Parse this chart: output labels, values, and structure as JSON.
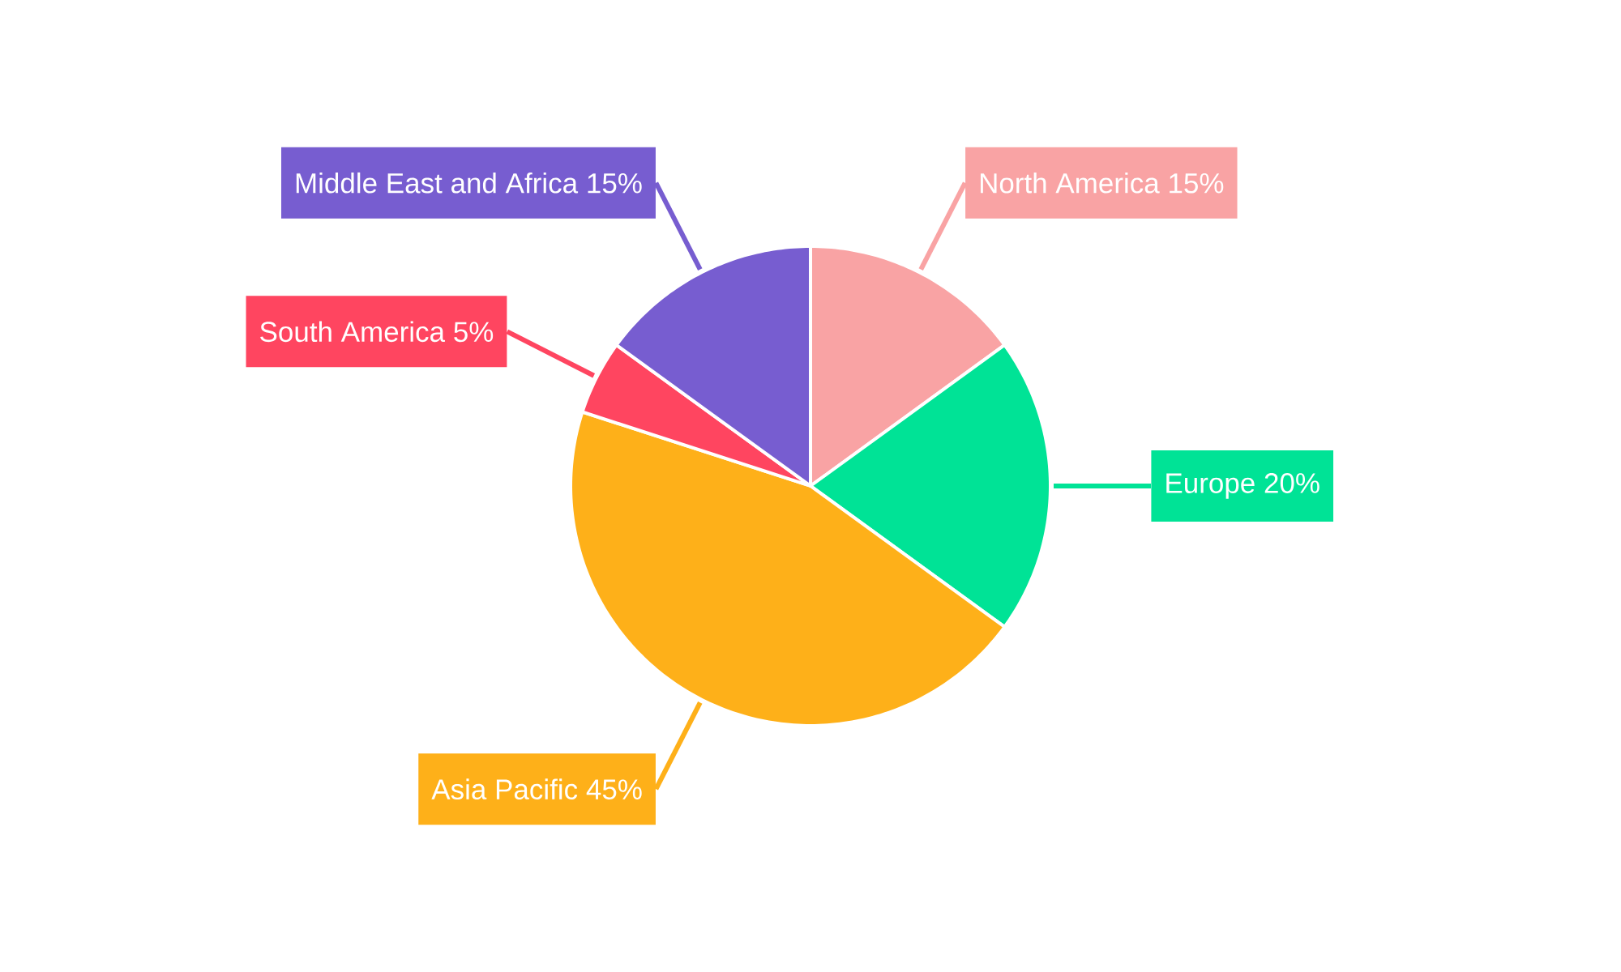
{
  "chart_data": {
    "type": "pie",
    "categories": [
      "North America",
      "Europe",
      "Asia Pacific",
      "South America",
      "Middle East and Africa"
    ],
    "values": [
      15,
      20,
      45,
      5,
      15
    ],
    "value_labels": [
      "15%",
      "20%",
      "45%",
      "5%",
      "15%"
    ],
    "colors": [
      "#f9a3a4",
      "#00e396",
      "#feb019",
      "#ff4560",
      "#775dd0"
    ]
  }
}
